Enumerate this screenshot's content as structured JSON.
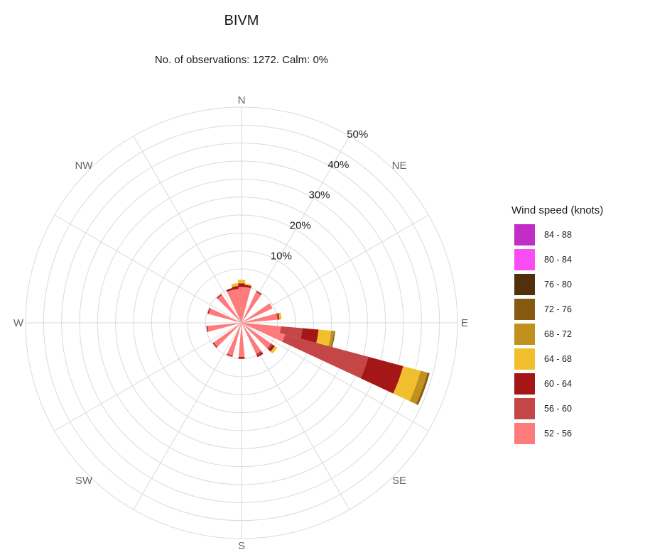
{
  "chart_data": {
    "type": "wind_rose",
    "title": "BIVM",
    "subtitle": "No. of observations: 1272. Calm: 0%",
    "direction_labels": [
      "N",
      "NE",
      "E",
      "SE",
      "S",
      "SW",
      "W",
      "NW"
    ],
    "radial_ticks": [
      "10%",
      "20%",
      "30%",
      "40%",
      "50%"
    ],
    "radial_max": 60,
    "grid": true,
    "legend": {
      "title": "Wind speed (knots)",
      "placement": "right",
      "entries": [
        {
          "label": "84 - 88",
          "color": "#c22dc8"
        },
        {
          "label": "80 - 84",
          "color": "#f94bf6"
        },
        {
          "label": "76 - 80",
          "color": "#52300b"
        },
        {
          "label": "72 - 76",
          "color": "#865a11"
        },
        {
          "label": "68 - 72",
          "color": "#c1911d"
        },
        {
          "label": "64 - 68",
          "color": "#f1bf2e"
        },
        {
          "label": "60 - 64",
          "color": "#a51616"
        },
        {
          "label": "56 - 60",
          "color": "#c44646"
        },
        {
          "label": "52 - 56",
          "color": "#ff7a7a"
        }
      ]
    },
    "bins": [
      "52 - 56",
      "56 - 60",
      "60 - 64",
      "64 - 68",
      "68 - 72",
      "72 - 76",
      "76 - 80",
      "80 - 84",
      "84 - 88"
    ],
    "sectors": [
      {
        "direction": 0,
        "values": [
          10.0,
          0.0,
          1.0,
          1.0,
          0.0,
          0.0,
          0,
          0,
          0
        ]
      },
      {
        "direction": 10,
        "values": [
          10.0,
          0.0,
          0.6,
          0.4,
          0.0,
          0.0,
          0,
          0,
          0
        ]
      },
      {
        "direction": 30,
        "values": [
          9.5,
          0.0,
          0.3,
          0.0,
          0.0,
          0.0,
          0,
          0,
          0
        ]
      },
      {
        "direction": 60,
        "values": [
          9.5,
          0.0,
          0.0,
          0.0,
          0.0,
          0.0,
          0,
          0,
          0
        ]
      },
      {
        "direction": 80,
        "values": [
          10.0,
          0.3,
          0.3,
          0.6,
          0.0,
          0.0,
          0,
          0,
          0
        ]
      },
      {
        "direction": 100,
        "values": [
          11.0,
          6.0,
          4.5,
          3.5,
          0.8,
          0.3,
          0,
          0,
          0
        ]
      },
      {
        "direction": 110,
        "values": [
          12.5,
          24.0,
          10.0,
          5.0,
          2.0,
          0.6,
          0,
          0,
          0
        ]
      },
      {
        "direction": 130,
        "values": [
          10.0,
          0.5,
          0.8,
          0.8,
          0.0,
          0.0,
          0,
          0,
          0
        ]
      },
      {
        "direction": 150,
        "values": [
          9.5,
          0.5,
          0.5,
          0.0,
          0.0,
          0.0,
          0,
          0,
          0
        ]
      },
      {
        "direction": 180,
        "values": [
          9.5,
          0.0,
          0.5,
          0.0,
          0.0,
          0.0,
          0,
          0,
          0
        ]
      },
      {
        "direction": 200,
        "values": [
          9.5,
          0.0,
          0.3,
          0.0,
          0.0,
          0.0,
          0,
          0,
          0
        ]
      },
      {
        "direction": 230,
        "values": [
          9.5,
          0.0,
          0.3,
          0.0,
          0.0,
          0.0,
          0,
          0,
          0
        ]
      },
      {
        "direction": 260,
        "values": [
          9.5,
          0.0,
          0.3,
          0.0,
          0.0,
          0.0,
          0,
          0,
          0
        ]
      },
      {
        "direction": 290,
        "values": [
          9.5,
          0.0,
          0.3,
          0.0,
          0.0,
          0.0,
          0,
          0,
          0
        ]
      },
      {
        "direction": 320,
        "values": [
          9.5,
          0.0,
          0.3,
          0.0,
          0.0,
          0.0,
          0,
          0,
          0
        ]
      },
      {
        "direction": 340,
        "values": [
          9.5,
          0.0,
          0.5,
          0.0,
          0.0,
          0.0,
          0,
          0,
          0
        ]
      },
      {
        "direction": 350,
        "values": [
          9.5,
          0.0,
          0.8,
          0.8,
          0.0,
          0.0,
          0,
          0,
          0
        ]
      }
    ]
  }
}
